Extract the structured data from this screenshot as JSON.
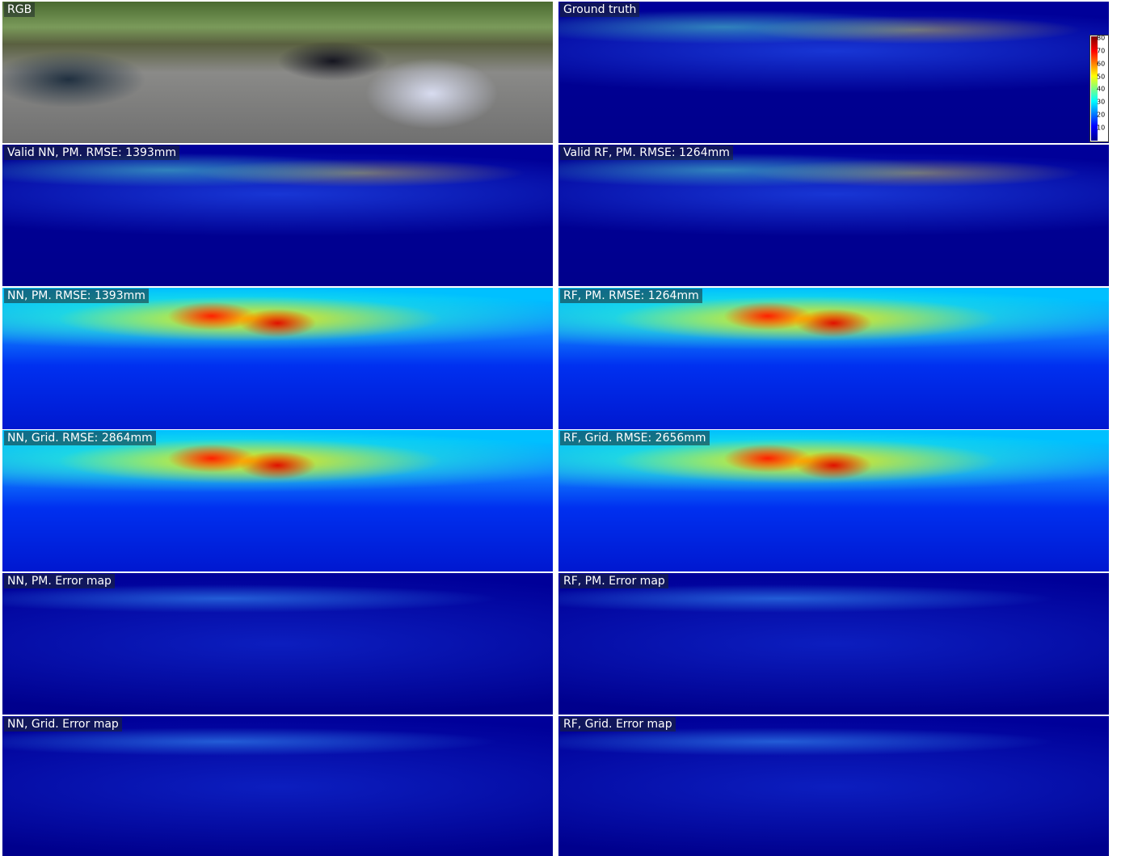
{
  "panels": [
    {
      "label": "RGB"
    },
    {
      "label": "Ground truth"
    },
    {
      "label": "Valid NN, PM. RMSE: 1393mm"
    },
    {
      "label": "Valid RF, PM. RMSE: 1264mm"
    },
    {
      "label": "NN, PM. RMSE: 1393mm"
    },
    {
      "label": "RF, PM. RMSE: 1264mm"
    },
    {
      "label": "NN, Grid. RMSE: 2864mm"
    },
    {
      "label": "RF, Grid. RMSE: 2656mm"
    },
    {
      "label": "NN, PM. Error map"
    },
    {
      "label": "RF, PM. Error map"
    },
    {
      "label": "NN, Grid. Error map"
    },
    {
      "label": "RF, Grid. Error map"
    }
  ],
  "colorbar": {
    "ticks": [
      80,
      70,
      60,
      50,
      40,
      30,
      20,
      10
    ]
  }
}
